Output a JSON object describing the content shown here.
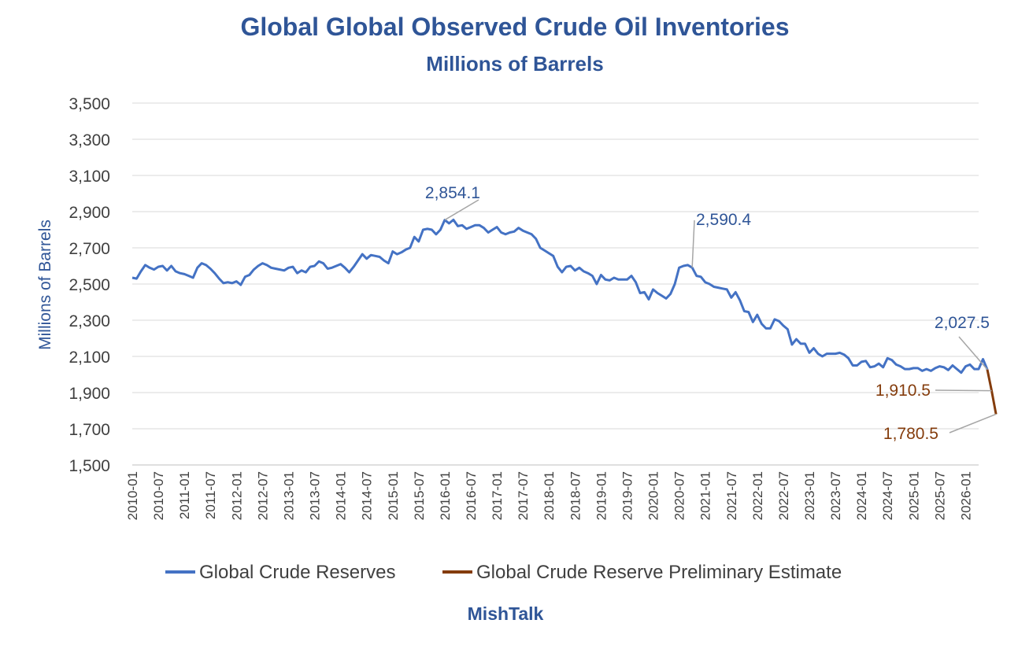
{
  "chart_data": {
    "type": "line",
    "title": "Global Global Observed Crude Oil Inventories",
    "subtitle": "Millions of Barrels",
    "ylabel": "Millions of Barrels",
    "xlabel": "",
    "footer": "MishTalk",
    "ylim": [
      1500,
      3500
    ],
    "y_ticks": [
      1500,
      1700,
      1900,
      2100,
      2300,
      2500,
      2700,
      2900,
      3100,
      3300,
      3500
    ],
    "y_tick_labels": [
      "1,500",
      "1,700",
      "1,900",
      "2,100",
      "2,300",
      "2,500",
      "2,700",
      "2,900",
      "3,100",
      "3,300",
      "3,500"
    ],
    "x_start": "2010-01",
    "x_end": "2026-04",
    "x_ticks": [
      "2010-01",
      "2010-07",
      "2011-01",
      "2011-07",
      "2012-01",
      "2012-07",
      "2013-01",
      "2013-07",
      "2014-01",
      "2014-07",
      "2015-01",
      "2015-07",
      "2016-01",
      "2016-07",
      "2017-01",
      "2017-07",
      "2018-01",
      "2018-07",
      "2019-01",
      "2019-07",
      "2020-01",
      "2020-07",
      "2021-01",
      "2021-07",
      "2022-01",
      "2022-07",
      "2023-01",
      "2023-07",
      "2024-01",
      "2024-07",
      "2025-01",
      "2025-07",
      "2026-01"
    ],
    "grid": true,
    "legend_position": "bottom",
    "series": [
      {
        "name": "Global Crude Reserves",
        "color": "#4472c4",
        "points": [
          [
            "2010-01",
            2535
          ],
          [
            "2010-02",
            2530
          ],
          [
            "2010-03",
            2570
          ],
          [
            "2010-04",
            2605
          ],
          [
            "2010-05",
            2590
          ],
          [
            "2010-06",
            2580
          ],
          [
            "2010-07",
            2595
          ],
          [
            "2010-08",
            2600
          ],
          [
            "2010-09",
            2575
          ],
          [
            "2010-10",
            2600
          ],
          [
            "2010-11",
            2570
          ],
          [
            "2010-12",
            2560
          ],
          [
            "2011-01",
            2555
          ],
          [
            "2011-02",
            2545
          ],
          [
            "2011-03",
            2535
          ],
          [
            "2011-04",
            2590
          ],
          [
            "2011-05",
            2615
          ],
          [
            "2011-06",
            2605
          ],
          [
            "2011-07",
            2585
          ],
          [
            "2011-08",
            2560
          ],
          [
            "2011-09",
            2530
          ],
          [
            "2011-10",
            2505
          ],
          [
            "2011-11",
            2510
          ],
          [
            "2011-12",
            2505
          ],
          [
            "2012-01",
            2515
          ],
          [
            "2012-02",
            2495
          ],
          [
            "2012-03",
            2540
          ],
          [
            "2012-04",
            2550
          ],
          [
            "2012-05",
            2580
          ],
          [
            "2012-06",
            2600
          ],
          [
            "2012-07",
            2615
          ],
          [
            "2012-08",
            2605
          ],
          [
            "2012-09",
            2590
          ],
          [
            "2012-10",
            2585
          ],
          [
            "2012-11",
            2580
          ],
          [
            "2012-12",
            2575
          ],
          [
            "2013-01",
            2590
          ],
          [
            "2013-02",
            2595
          ],
          [
            "2013-03",
            2560
          ],
          [
            "2013-04",
            2575
          ],
          [
            "2013-05",
            2565
          ],
          [
            "2013-06",
            2595
          ],
          [
            "2013-07",
            2600
          ],
          [
            "2013-08",
            2625
          ],
          [
            "2013-09",
            2615
          ],
          [
            "2013-10",
            2585
          ],
          [
            "2013-11",
            2590
          ],
          [
            "2013-12",
            2600
          ],
          [
            "2014-01",
            2610
          ],
          [
            "2014-02",
            2590
          ],
          [
            "2014-03",
            2565
          ],
          [
            "2014-04",
            2595
          ],
          [
            "2014-05",
            2630
          ],
          [
            "2014-06",
            2665
          ],
          [
            "2014-07",
            2640
          ],
          [
            "2014-08",
            2660
          ],
          [
            "2014-09",
            2655
          ],
          [
            "2014-10",
            2650
          ],
          [
            "2014-11",
            2630
          ],
          [
            "2014-12",
            2615
          ],
          [
            "2015-01",
            2680
          ],
          [
            "2015-02",
            2665
          ],
          [
            "2015-03",
            2675
          ],
          [
            "2015-04",
            2690
          ],
          [
            "2015-05",
            2700
          ],
          [
            "2015-06",
            2760
          ],
          [
            "2015-07",
            2735
          ],
          [
            "2015-08",
            2800
          ],
          [
            "2015-09",
            2805
          ],
          [
            "2015-10",
            2800
          ],
          [
            "2015-11",
            2775
          ],
          [
            "2015-12",
            2800
          ],
          [
            "2016-01",
            2854.1
          ],
          [
            "2016-02",
            2835
          ],
          [
            "2016-03",
            2855
          ],
          [
            "2016-04",
            2820
          ],
          [
            "2016-05",
            2825
          ],
          [
            "2016-06",
            2805
          ],
          [
            "2016-07",
            2815
          ],
          [
            "2016-08",
            2825
          ],
          [
            "2016-09",
            2825
          ],
          [
            "2016-10",
            2810
          ],
          [
            "2016-11",
            2785
          ],
          [
            "2016-12",
            2800
          ],
          [
            "2017-01",
            2815
          ],
          [
            "2017-02",
            2785
          ],
          [
            "2017-03",
            2775
          ],
          [
            "2017-04",
            2785
          ],
          [
            "2017-05",
            2790
          ],
          [
            "2017-06",
            2810
          ],
          [
            "2017-07",
            2795
          ],
          [
            "2017-08",
            2785
          ],
          [
            "2017-09",
            2775
          ],
          [
            "2017-10",
            2750
          ],
          [
            "2017-11",
            2700
          ],
          [
            "2017-12",
            2685
          ],
          [
            "2018-01",
            2670
          ],
          [
            "2018-02",
            2655
          ],
          [
            "2018-03",
            2595
          ],
          [
            "2018-04",
            2565
          ],
          [
            "2018-05",
            2595
          ],
          [
            "2018-06",
            2600
          ],
          [
            "2018-07",
            2575
          ],
          [
            "2018-08",
            2590
          ],
          [
            "2018-09",
            2570
          ],
          [
            "2018-10",
            2560
          ],
          [
            "2018-11",
            2545
          ],
          [
            "2018-12",
            2500
          ],
          [
            "2019-01",
            2550
          ],
          [
            "2019-02",
            2525
          ],
          [
            "2019-03",
            2520
          ],
          [
            "2019-04",
            2535
          ],
          [
            "2019-05",
            2525
          ],
          [
            "2019-06",
            2525
          ],
          [
            "2019-07",
            2525
          ],
          [
            "2019-08",
            2545
          ],
          [
            "2019-09",
            2510
          ],
          [
            "2019-10",
            2450
          ],
          [
            "2019-11",
            2455
          ],
          [
            "2019-12",
            2415
          ],
          [
            "2020-01",
            2470
          ],
          [
            "2020-02",
            2450
          ],
          [
            "2020-03",
            2435
          ],
          [
            "2020-04",
            2420
          ],
          [
            "2020-05",
            2445
          ],
          [
            "2020-06",
            2500
          ],
          [
            "2020-07",
            2590
          ],
          [
            "2020-08",
            2600
          ],
          [
            "2020-09",
            2605
          ],
          [
            "2020-10",
            2590.4
          ],
          [
            "2020-11",
            2545
          ],
          [
            "2020-12",
            2540
          ],
          [
            "2021-01",
            2510
          ],
          [
            "2021-02",
            2500
          ],
          [
            "2021-03",
            2485
          ],
          [
            "2021-04",
            2480
          ],
          [
            "2021-05",
            2475
          ],
          [
            "2021-06",
            2470
          ],
          [
            "2021-07",
            2425
          ],
          [
            "2021-08",
            2455
          ],
          [
            "2021-09",
            2410
          ],
          [
            "2021-10",
            2350
          ],
          [
            "2021-11",
            2345
          ],
          [
            "2021-12",
            2290
          ],
          [
            "2022-01",
            2330
          ],
          [
            "2022-02",
            2280
          ],
          [
            "2022-03",
            2255
          ],
          [
            "2022-04",
            2255
          ],
          [
            "2022-05",
            2305
          ],
          [
            "2022-06",
            2295
          ],
          [
            "2022-07",
            2270
          ],
          [
            "2022-08",
            2250
          ],
          [
            "2022-09",
            2165
          ],
          [
            "2022-10",
            2195
          ],
          [
            "2022-11",
            2170
          ],
          [
            "2022-12",
            2170
          ],
          [
            "2023-01",
            2120
          ],
          [
            "2023-02",
            2145
          ],
          [
            "2023-03",
            2115
          ],
          [
            "2023-04",
            2100
          ],
          [
            "2023-05",
            2115
          ],
          [
            "2023-06",
            2115
          ],
          [
            "2023-07",
            2115
          ],
          [
            "2023-08",
            2120
          ],
          [
            "2023-09",
            2110
          ],
          [
            "2023-10",
            2090
          ],
          [
            "2023-11",
            2050
          ],
          [
            "2023-12",
            2050
          ],
          [
            "2024-01",
            2070
          ],
          [
            "2024-02",
            2075
          ],
          [
            "2024-03",
            2040
          ],
          [
            "2024-04",
            2045
          ],
          [
            "2024-05",
            2060
          ],
          [
            "2024-06",
            2040
          ],
          [
            "2024-07",
            2090
          ],
          [
            "2024-08",
            2080
          ],
          [
            "2024-09",
            2055
          ],
          [
            "2024-10",
            2045
          ],
          [
            "2024-11",
            2030
          ],
          [
            "2024-12",
            2030
          ],
          [
            "2025-01",
            2035
          ],
          [
            "2025-02",
            2035
          ],
          [
            "2025-03",
            2020
          ],
          [
            "2025-04",
            2030
          ],
          [
            "2025-05",
            2020
          ],
          [
            "2025-06",
            2035
          ],
          [
            "2025-07",
            2045
          ],
          [
            "2025-08",
            2040
          ],
          [
            "2025-09",
            2025
          ],
          [
            "2025-10",
            2050
          ],
          [
            "2025-11",
            2030
          ],
          [
            "2025-12",
            2010
          ],
          [
            "2026-01",
            2045
          ],
          [
            "2026-02",
            2055
          ],
          [
            "2026-03",
            2030
          ],
          [
            "2026-04",
            2030
          ],
          [
            "2026-05",
            2085
          ],
          [
            "2026-06",
            2027.5
          ]
        ]
      },
      {
        "name": "Global Crude Reserve Preliminary Estimate",
        "color": "#843c0c",
        "points": [
          [
            "2026-06",
            2027.5
          ],
          [
            "2026-07",
            1910.5
          ],
          [
            "2026-08",
            1780.5
          ]
        ]
      }
    ],
    "annotations": [
      {
        "text": "2,854.1",
        "point": [
          "2016-01",
          2854.1
        ],
        "color": "#2f5597"
      },
      {
        "text": "2,590.4",
        "point": [
          "2020-10",
          2590.4
        ],
        "color": "#2f5597"
      },
      {
        "text": "2,027.5",
        "point": [
          "2026-06",
          2027.5
        ],
        "color": "#2f5597"
      },
      {
        "text": "1,910.5",
        "point": [
          "2026-07",
          1910.5
        ],
        "color": "#843c0c"
      },
      {
        "text": "1,780.5",
        "point": [
          "2026-08",
          1780.5
        ],
        "color": "#843c0c"
      }
    ]
  }
}
